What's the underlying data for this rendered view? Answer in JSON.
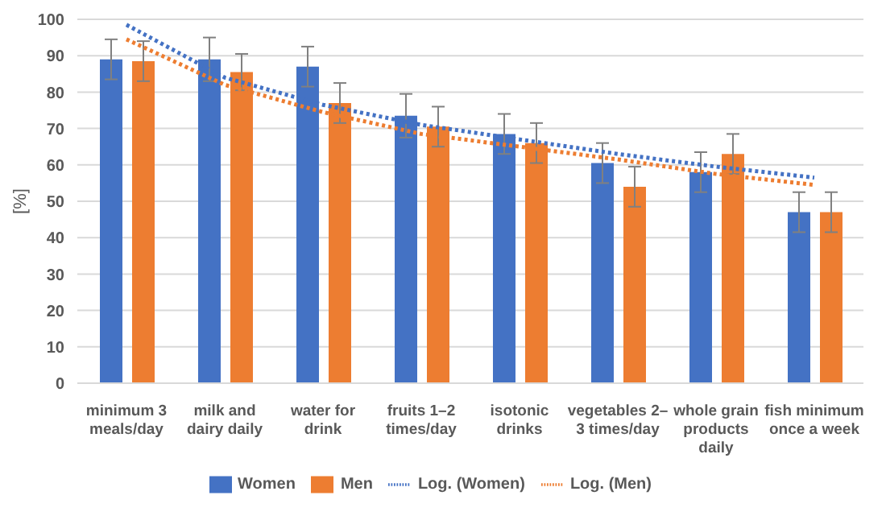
{
  "chart_data": {
    "type": "bar",
    "ylabel": "[%]",
    "categories": [
      "minimum 3 meals/day",
      "milk and dairy daily",
      "water for drink",
      "fruits 1–2 times/day",
      "isotonic drinks",
      "vegetables 2–3 times/day",
      "whole grain products daily",
      "fish minimum once a week"
    ],
    "series": [
      {
        "name": "Women",
        "color": "#4472c4",
        "values": [
          89,
          89,
          87,
          73.5,
          68.5,
          60.5,
          58,
          47
        ],
        "errors": [
          5.5,
          6,
          5.5,
          6,
          5.5,
          5.5,
          5.5,
          5.5
        ]
      },
      {
        "name": "Men",
        "color": "#ed7d31",
        "values": [
          88.5,
          85.5,
          77,
          70.5,
          66,
          54,
          63,
          47
        ],
        "errors": [
          5.5,
          5,
          5.5,
          5.5,
          5.5,
          5.5,
          5.5,
          5.5
        ]
      },
      {
        "name": "Log. (Women)",
        "type": "line",
        "color": "#4472c4",
        "line_style": "dotted",
        "values": [
          98.5,
          84,
          76.5,
          71,
          67,
          63,
          59.5,
          56.5
        ]
      },
      {
        "name": "Log. (Men)",
        "type": "line",
        "color": "#ed7d31",
        "line_style": "dotted",
        "values": [
          94.5,
          82,
          74.5,
          68.5,
          65,
          61.5,
          57.5,
          54.5
        ]
      }
    ],
    "ylim": [
      0,
      100
    ],
    "yticks": [
      0,
      10,
      20,
      30,
      40,
      50,
      60,
      70,
      80,
      90,
      100
    ],
    "grid": "y",
    "legend": "bottom",
    "marker": "none"
  }
}
